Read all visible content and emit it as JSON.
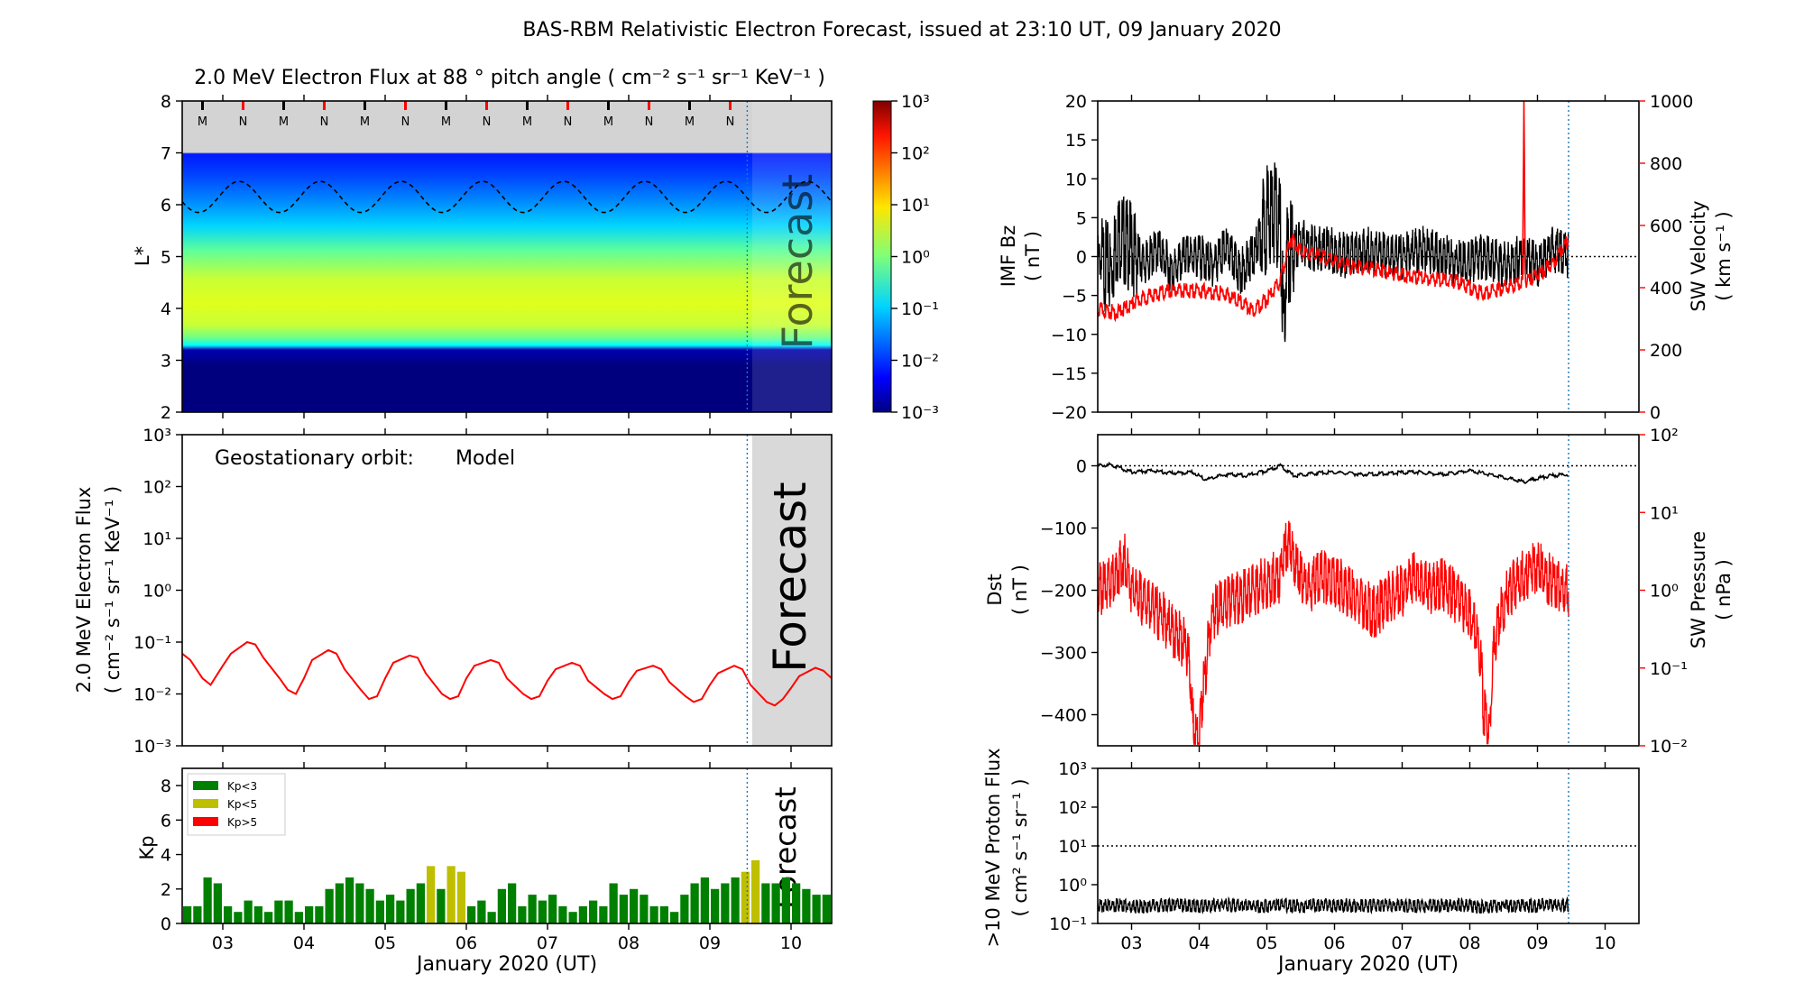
{
  "figure": {
    "title": "BAS-RBM Relativistic Electron Forecast, issued at 23:10 UT, 09 January 2020",
    "xlabel": "January 2020 (UT)",
    "forecast_label": "Forecast",
    "days": [
      "03",
      "04",
      "05",
      "06",
      "07",
      "08",
      "09",
      "10"
    ]
  },
  "colors": {
    "black": "#000000",
    "red": "#ff0000",
    "forecast_bg": "#d9d9d9",
    "forecast_line": "#1f77b4",
    "kp_low": "#008000",
    "kp_mid": "#bfbf00",
    "kp_high": "#ff0000"
  },
  "chart_data": [
    {
      "id": "lstar-flux",
      "type": "heatmap",
      "title": "2.0 MeV Electron Flux at 88 ° pitch angle ( cm⁻² s⁻¹ sr⁻¹ KeV⁻¹ )",
      "ylabel": "L*",
      "ylim": [
        2,
        8
      ],
      "y_ticks": [
        "2",
        "3",
        "4",
        "5",
        "6",
        "7",
        "8"
      ],
      "xlim": [
        2.5,
        10.5
      ],
      "forecast_start": 9.46,
      "colorbar_ticks": [
        "10⁻³",
        "10⁻²",
        "10⁻¹",
        "10⁰",
        "10¹",
        "10²",
        "10³"
      ],
      "colorbar_scale": "log",
      "mlt_markers": [
        "M",
        "N",
        "M",
        "N",
        "M",
        "N",
        "M",
        "N",
        "M",
        "N",
        "M",
        "N",
        "M",
        "N"
      ],
      "mlt_marker_times": [
        2.75,
        3.25,
        3.75,
        4.25,
        4.75,
        5.25,
        5.75,
        6.25,
        6.75,
        7.25,
        7.75,
        8.25,
        8.75,
        9.25
      ],
      "orbit_line": "geostationary L* (dashed), oscillating between ~5.85 and ~6.45 with daily period",
      "profile": [
        {
          "L": 2.0,
          "log_flux": -3.0
        },
        {
          "L": 3.2,
          "log_flux": -2.5
        },
        {
          "L": 3.4,
          "log_flux": -0.5
        },
        {
          "L": 3.7,
          "log_flux": 0.4
        },
        {
          "L": 4.2,
          "log_flux": 0.8
        },
        {
          "L": 4.8,
          "log_flux": 0.5
        },
        {
          "L": 5.3,
          "log_flux": -0.2
        },
        {
          "L": 5.8,
          "log_flux": -1.0
        },
        {
          "L": 6.4,
          "log_flux": -2.0
        },
        {
          "L": 7.0,
          "log_flux": -2.5
        }
      ]
    },
    {
      "id": "geo-flux",
      "type": "line",
      "annotation_label": "Geostationary orbit:",
      "annotation_value": "Model",
      "ylabel_line1": "2.0 MeV Electron Flux",
      "ylabel_line2": "( cm⁻² s⁻¹ sr⁻¹ KeV⁻¹ )",
      "yscale": "log",
      "ylim": [
        0.001,
        1000
      ],
      "y_ticks": [
        "10⁻³",
        "10⁻²",
        "10⁻¹",
        "10⁰",
        "10¹",
        "10²",
        "10³"
      ],
      "xlim": [
        2.5,
        10.5
      ],
      "forecast_start": 9.46,
      "series": [
        {
          "color": "#ff0000",
          "x": [
            2.5,
            2.6,
            2.75,
            2.85,
            3.0,
            3.1,
            3.3,
            3.4,
            3.5,
            3.7,
            3.8,
            3.9,
            4.0,
            4.1,
            4.3,
            4.4,
            4.5,
            4.7,
            4.8,
            4.9,
            5.0,
            5.1,
            5.3,
            5.4,
            5.5,
            5.7,
            5.8,
            5.9,
            6.0,
            6.1,
            6.3,
            6.4,
            6.5,
            6.7,
            6.8,
            6.9,
            7.0,
            7.1,
            7.3,
            7.4,
            7.5,
            7.7,
            7.8,
            7.9,
            8.0,
            8.1,
            8.3,
            8.4,
            8.5,
            8.7,
            8.8,
            8.9,
            9.0,
            9.1,
            9.3,
            9.4,
            9.5,
            9.7,
            9.8,
            9.9,
            10.0,
            10.1,
            10.3,
            10.4,
            10.5
          ],
          "y": [
            0.06,
            0.045,
            0.02,
            0.015,
            0.035,
            0.06,
            0.1,
            0.09,
            0.05,
            0.02,
            0.012,
            0.01,
            0.02,
            0.045,
            0.07,
            0.06,
            0.03,
            0.012,
            0.008,
            0.009,
            0.02,
            0.04,
            0.055,
            0.05,
            0.025,
            0.01,
            0.008,
            0.009,
            0.02,
            0.035,
            0.045,
            0.04,
            0.02,
            0.01,
            0.008,
            0.009,
            0.018,
            0.03,
            0.04,
            0.035,
            0.018,
            0.01,
            0.008,
            0.009,
            0.017,
            0.028,
            0.035,
            0.03,
            0.017,
            0.009,
            0.007,
            0.008,
            0.015,
            0.025,
            0.035,
            0.03,
            0.015,
            0.007,
            0.006,
            0.008,
            0.013,
            0.022,
            0.032,
            0.028,
            0.02
          ]
        }
      ]
    },
    {
      "id": "kp",
      "type": "bar",
      "ylabel": "Kp",
      "ylim": [
        0,
        9
      ],
      "y_ticks": [
        "0",
        "2",
        "4",
        "6",
        "8"
      ],
      "xlim": [
        2.5,
        10.5
      ],
      "forecast_start": 9.46,
      "bar_width_days": 0.125,
      "start_day": 2.5,
      "legend": [
        "Kp<3",
        "Kp<5",
        "Kp>5"
      ],
      "legend_position": "upper-left",
      "values": [
        1.0,
        1.0,
        2.67,
        2.33,
        1.0,
        0.67,
        1.33,
        1.0,
        0.67,
        1.33,
        1.33,
        0.67,
        1.0,
        1.0,
        2.0,
        2.33,
        2.67,
        2.33,
        2.0,
        1.33,
        1.67,
        1.33,
        2.0,
        2.33,
        3.33,
        2.0,
        3.33,
        3.0,
        1.0,
        1.33,
        0.67,
        2.0,
        2.33,
        1.0,
        1.67,
        1.33,
        1.67,
        1.0,
        0.67,
        1.0,
        1.33,
        1.0,
        2.33,
        1.67,
        2.0,
        1.67,
        1.0,
        1.0,
        0.67,
        1.67,
        2.33,
        2.67,
        2.0,
        2.33,
        2.67,
        3.0,
        3.67,
        2.33,
        2.33,
        2.67,
        2.33,
        2.0,
        1.67,
        1.67,
        1.67,
        1.67,
        1.67,
        1.67,
        1.67,
        1.67,
        1.67,
        1.67,
        1.67,
        1.67
      ]
    },
    {
      "id": "imf-sw",
      "type": "line",
      "ylabel_left_1": "IMF Bz",
      "ylabel_left_2": "( nT )",
      "ylabel_right_1": "SW Velocity",
      "ylabel_right_2": "( km s⁻¹ )",
      "ylim_left": [
        -20,
        20
      ],
      "y_ticks_left": [
        "−20",
        "−15",
        "−10",
        "−5",
        "0",
        "5",
        "10",
        "15",
        "20"
      ],
      "ylim_right": [
        0,
        1000
      ],
      "y_ticks_right": [
        "0",
        "200",
        "400",
        "600",
        "800",
        "1000"
      ],
      "xlim": [
        2.5,
        10.5
      ],
      "data_end": 9.46,
      "series": [
        {
          "name_axis": "left",
          "color": "#000000",
          "x": [
            2.5,
            2.7,
            2.8,
            3.0,
            3.2,
            3.4,
            3.6,
            3.8,
            4.0,
            4.2,
            4.4,
            4.6,
            4.8,
            5.0,
            5.1,
            5.2,
            5.25,
            5.3,
            5.5,
            5.7,
            5.9,
            6.2,
            6.5,
            6.8,
            7.0,
            7.3,
            7.6,
            7.9,
            8.2,
            8.5,
            8.8,
            9.0,
            9.2,
            9.46
          ],
          "y": [
            0,
            -2,
            3,
            1,
            -1,
            1,
            -2,
            0,
            0,
            -1,
            1,
            -2,
            0,
            5,
            6,
            3,
            -10,
            0,
            2,
            1,
            1,
            0,
            1,
            0,
            0,
            1,
            0,
            -1,
            0,
            -1,
            0,
            -1,
            1,
            0
          ]
        },
        {
          "name_axis": "right",
          "color": "#ff0000",
          "x": [
            2.5,
            2.8,
            3.2,
            3.6,
            4.0,
            4.4,
            4.8,
            5.0,
            5.2,
            5.35,
            5.5,
            5.8,
            6.2,
            6.6,
            7.0,
            7.4,
            7.8,
            8.2,
            8.5,
            8.78,
            8.8,
            8.82,
            9.0,
            9.2,
            9.46
          ],
          "y": [
            330,
            320,
            370,
            390,
            390,
            380,
            330,
            360,
            420,
            560,
            520,
            500,
            470,
            460,
            440,
            430,
            420,
            380,
            400,
            420,
            1000,
            420,
            440,
            470,
            560
          ]
        }
      ]
    },
    {
      "id": "dst-pressure",
      "type": "line",
      "ylabel_left_1": "Dst",
      "ylabel_left_2": "( nT )",
      "ylabel_right_1": "SW Pressure",
      "ylabel_right_2": "( nPa )",
      "ylim_left": [
        -450,
        50
      ],
      "y_ticks_left": [
        "−400",
        "−300",
        "−200",
        "−100",
        "0"
      ],
      "yscale_right": "log",
      "ylim_right": [
        0.01,
        100
      ],
      "y_ticks_right": [
        "10⁻²",
        "10⁻¹",
        "10⁰",
        "10¹",
        "10²"
      ],
      "xlim": [
        2.5,
        10.5
      ],
      "data_end": 9.46,
      "series": [
        {
          "name_axis": "left",
          "color": "#000000",
          "x": [
            2.5,
            2.7,
            3.0,
            3.3,
            3.6,
            3.9,
            4.1,
            4.4,
            4.7,
            5.0,
            5.2,
            5.4,
            5.7,
            6.0,
            6.4,
            6.8,
            7.2,
            7.6,
            8.0,
            8.4,
            8.8,
            9.0,
            9.2,
            9.46
          ],
          "y": [
            0,
            2,
            -10,
            -8,
            -12,
            -10,
            -22,
            -14,
            -16,
            -8,
            0,
            -16,
            -12,
            -10,
            -14,
            -12,
            -10,
            -14,
            -8,
            -16,
            -26,
            -20,
            -16,
            -14
          ]
        },
        {
          "name_axis": "right",
          "color": "#ff0000",
          "x": [
            2.5,
            2.7,
            2.9,
            3.0,
            3.2,
            3.4,
            3.6,
            3.8,
            3.9,
            4.0,
            4.1,
            4.2,
            4.4,
            4.6,
            4.8,
            5.0,
            5.2,
            5.3,
            5.45,
            5.6,
            5.8,
            6.0,
            6.2,
            6.4,
            6.6,
            6.8,
            7.0,
            7.2,
            7.4,
            7.6,
            7.8,
            8.0,
            8.2,
            8.3,
            8.4,
            8.6,
            8.8,
            9.0,
            9.2,
            9.46
          ],
          "y": [
            1.0,
            1.2,
            2.5,
            1.0,
            0.7,
            0.5,
            0.3,
            0.2,
            0.02,
            0.01,
            0.08,
            0.5,
            0.7,
            0.8,
            1.0,
            1.3,
            1.5,
            4.0,
            2.0,
            1.0,
            1.5,
            1.3,
            1.0,
            0.7,
            0.5,
            0.8,
            1.0,
            1.5,
            1.0,
            1.2,
            0.8,
            0.5,
            0.03,
            0.01,
            0.3,
            1.0,
            1.5,
            2.0,
            1.3,
            1.0
          ]
        }
      ]
    },
    {
      "id": "proton-flux",
      "type": "line",
      "ylabel_1": ">10 MeV Proton Flux",
      "ylabel_2": "( cm² s⁻¹ sr⁻¹ )",
      "yscale": "log",
      "ylim": [
        0.1,
        1000
      ],
      "y_ticks": [
        "10⁻¹",
        "10⁰",
        "10¹",
        "10²",
        "10³"
      ],
      "threshold": 10,
      "xlim": [
        2.5,
        10.5
      ],
      "data_end": 9.46,
      "series": [
        {
          "color": "#000000",
          "x": [
            2.5,
            2.8,
            3.1,
            3.4,
            3.7,
            4.0,
            4.3,
            4.6,
            4.9,
            5.2,
            5.5,
            5.8,
            6.1,
            6.4,
            6.7,
            7.0,
            7.3,
            7.6,
            7.9,
            8.2,
            8.5,
            8.8,
            9.1,
            9.46
          ],
          "y": [
            0.28,
            0.3,
            0.27,
            0.29,
            0.3,
            0.28,
            0.3,
            0.29,
            0.27,
            0.3,
            0.28,
            0.3,
            0.29,
            0.28,
            0.3,
            0.29,
            0.28,
            0.3,
            0.29,
            0.27,
            0.3,
            0.28,
            0.29,
            0.3
          ]
        }
      ]
    }
  ]
}
